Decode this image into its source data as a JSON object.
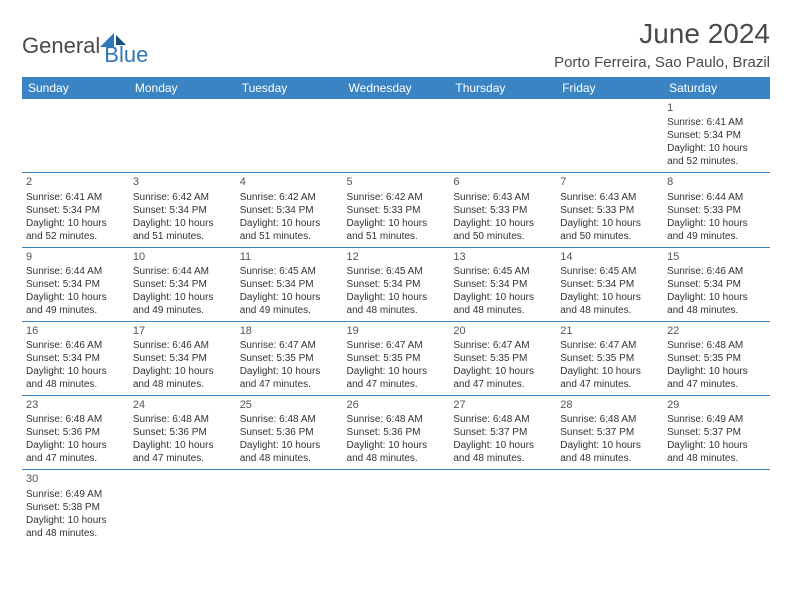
{
  "brand": {
    "word1": "General",
    "word2": "Blue"
  },
  "title": "June 2024",
  "location": "Porto Ferreira, Sao Paulo, Brazil",
  "colors": {
    "header_bg": "#3b84c4",
    "header_text": "#ffffff",
    "border": "#3b84c4",
    "text": "#333333",
    "brand_gray": "#4a4a4a",
    "brand_blue": "#2f77bb"
  },
  "day_headers": [
    "Sunday",
    "Monday",
    "Tuesday",
    "Wednesday",
    "Thursday",
    "Friday",
    "Saturday"
  ],
  "weeks": [
    [
      null,
      null,
      null,
      null,
      null,
      null,
      {
        "n": "1",
        "sr": "6:41 AM",
        "ss": "5:34 PM",
        "dl": "10 hours and 52 minutes."
      }
    ],
    [
      {
        "n": "2",
        "sr": "6:41 AM",
        "ss": "5:34 PM",
        "dl": "10 hours and 52 minutes."
      },
      {
        "n": "3",
        "sr": "6:42 AM",
        "ss": "5:34 PM",
        "dl": "10 hours and 51 minutes."
      },
      {
        "n": "4",
        "sr": "6:42 AM",
        "ss": "5:34 PM",
        "dl": "10 hours and 51 minutes."
      },
      {
        "n": "5",
        "sr": "6:42 AM",
        "ss": "5:33 PM",
        "dl": "10 hours and 51 minutes."
      },
      {
        "n": "6",
        "sr": "6:43 AM",
        "ss": "5:33 PM",
        "dl": "10 hours and 50 minutes."
      },
      {
        "n": "7",
        "sr": "6:43 AM",
        "ss": "5:33 PM",
        "dl": "10 hours and 50 minutes."
      },
      {
        "n": "8",
        "sr": "6:44 AM",
        "ss": "5:33 PM",
        "dl": "10 hours and 49 minutes."
      }
    ],
    [
      {
        "n": "9",
        "sr": "6:44 AM",
        "ss": "5:34 PM",
        "dl": "10 hours and 49 minutes."
      },
      {
        "n": "10",
        "sr": "6:44 AM",
        "ss": "5:34 PM",
        "dl": "10 hours and 49 minutes."
      },
      {
        "n": "11",
        "sr": "6:45 AM",
        "ss": "5:34 PM",
        "dl": "10 hours and 49 minutes."
      },
      {
        "n": "12",
        "sr": "6:45 AM",
        "ss": "5:34 PM",
        "dl": "10 hours and 48 minutes."
      },
      {
        "n": "13",
        "sr": "6:45 AM",
        "ss": "5:34 PM",
        "dl": "10 hours and 48 minutes."
      },
      {
        "n": "14",
        "sr": "6:45 AM",
        "ss": "5:34 PM",
        "dl": "10 hours and 48 minutes."
      },
      {
        "n": "15",
        "sr": "6:46 AM",
        "ss": "5:34 PM",
        "dl": "10 hours and 48 minutes."
      }
    ],
    [
      {
        "n": "16",
        "sr": "6:46 AM",
        "ss": "5:34 PM",
        "dl": "10 hours and 48 minutes."
      },
      {
        "n": "17",
        "sr": "6:46 AM",
        "ss": "5:34 PM",
        "dl": "10 hours and 48 minutes."
      },
      {
        "n": "18",
        "sr": "6:47 AM",
        "ss": "5:35 PM",
        "dl": "10 hours and 47 minutes."
      },
      {
        "n": "19",
        "sr": "6:47 AM",
        "ss": "5:35 PM",
        "dl": "10 hours and 47 minutes."
      },
      {
        "n": "20",
        "sr": "6:47 AM",
        "ss": "5:35 PM",
        "dl": "10 hours and 47 minutes."
      },
      {
        "n": "21",
        "sr": "6:47 AM",
        "ss": "5:35 PM",
        "dl": "10 hours and 47 minutes."
      },
      {
        "n": "22",
        "sr": "6:48 AM",
        "ss": "5:35 PM",
        "dl": "10 hours and 47 minutes."
      }
    ],
    [
      {
        "n": "23",
        "sr": "6:48 AM",
        "ss": "5:36 PM",
        "dl": "10 hours and 47 minutes."
      },
      {
        "n": "24",
        "sr": "6:48 AM",
        "ss": "5:36 PM",
        "dl": "10 hours and 47 minutes."
      },
      {
        "n": "25",
        "sr": "6:48 AM",
        "ss": "5:36 PM",
        "dl": "10 hours and 48 minutes."
      },
      {
        "n": "26",
        "sr": "6:48 AM",
        "ss": "5:36 PM",
        "dl": "10 hours and 48 minutes."
      },
      {
        "n": "27",
        "sr": "6:48 AM",
        "ss": "5:37 PM",
        "dl": "10 hours and 48 minutes."
      },
      {
        "n": "28",
        "sr": "6:48 AM",
        "ss": "5:37 PM",
        "dl": "10 hours and 48 minutes."
      },
      {
        "n": "29",
        "sr": "6:49 AM",
        "ss": "5:37 PM",
        "dl": "10 hours and 48 minutes."
      }
    ],
    [
      {
        "n": "30",
        "sr": "6:49 AM",
        "ss": "5:38 PM",
        "dl": "10 hours and 48 minutes."
      },
      null,
      null,
      null,
      null,
      null,
      null
    ]
  ],
  "labels": {
    "sunrise": "Sunrise:",
    "sunset": "Sunset:",
    "daylight": "Daylight:"
  }
}
